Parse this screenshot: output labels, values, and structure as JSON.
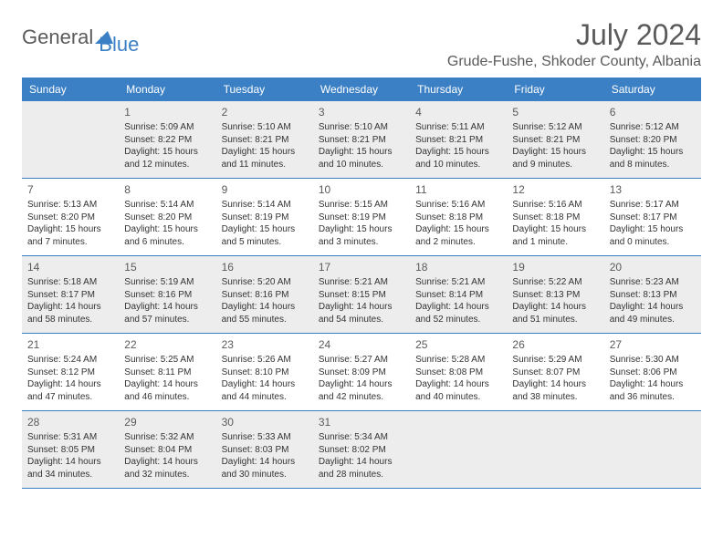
{
  "logo": {
    "text1": "General",
    "text2": "Blue"
  },
  "title": "July 2024",
  "location": "Grude-Fushe, Shkoder County, Albania",
  "colors": {
    "header_bg": "#3b7fc4",
    "header_text": "#ffffff",
    "alt_row_bg": "#ededed",
    "border": "#3b7fc4",
    "text_gray": "#5a5a5a",
    "text_dark": "#333333"
  },
  "dayNames": [
    "Sunday",
    "Monday",
    "Tuesday",
    "Wednesday",
    "Thursday",
    "Friday",
    "Saturday"
  ],
  "weeks": [
    [
      {
        "n": "",
        "sunrise": "",
        "sunset": "",
        "daylight": ""
      },
      {
        "n": "1",
        "sunrise": "Sunrise: 5:09 AM",
        "sunset": "Sunset: 8:22 PM",
        "daylight": "Daylight: 15 hours and 12 minutes."
      },
      {
        "n": "2",
        "sunrise": "Sunrise: 5:10 AM",
        "sunset": "Sunset: 8:21 PM",
        "daylight": "Daylight: 15 hours and 11 minutes."
      },
      {
        "n": "3",
        "sunrise": "Sunrise: 5:10 AM",
        "sunset": "Sunset: 8:21 PM",
        "daylight": "Daylight: 15 hours and 10 minutes."
      },
      {
        "n": "4",
        "sunrise": "Sunrise: 5:11 AM",
        "sunset": "Sunset: 8:21 PM",
        "daylight": "Daylight: 15 hours and 10 minutes."
      },
      {
        "n": "5",
        "sunrise": "Sunrise: 5:12 AM",
        "sunset": "Sunset: 8:21 PM",
        "daylight": "Daylight: 15 hours and 9 minutes."
      },
      {
        "n": "6",
        "sunrise": "Sunrise: 5:12 AM",
        "sunset": "Sunset: 8:20 PM",
        "daylight": "Daylight: 15 hours and 8 minutes."
      }
    ],
    [
      {
        "n": "7",
        "sunrise": "Sunrise: 5:13 AM",
        "sunset": "Sunset: 8:20 PM",
        "daylight": "Daylight: 15 hours and 7 minutes."
      },
      {
        "n": "8",
        "sunrise": "Sunrise: 5:14 AM",
        "sunset": "Sunset: 8:20 PM",
        "daylight": "Daylight: 15 hours and 6 minutes."
      },
      {
        "n": "9",
        "sunrise": "Sunrise: 5:14 AM",
        "sunset": "Sunset: 8:19 PM",
        "daylight": "Daylight: 15 hours and 5 minutes."
      },
      {
        "n": "10",
        "sunrise": "Sunrise: 5:15 AM",
        "sunset": "Sunset: 8:19 PM",
        "daylight": "Daylight: 15 hours and 3 minutes."
      },
      {
        "n": "11",
        "sunrise": "Sunrise: 5:16 AM",
        "sunset": "Sunset: 8:18 PM",
        "daylight": "Daylight: 15 hours and 2 minutes."
      },
      {
        "n": "12",
        "sunrise": "Sunrise: 5:16 AM",
        "sunset": "Sunset: 8:18 PM",
        "daylight": "Daylight: 15 hours and 1 minute."
      },
      {
        "n": "13",
        "sunrise": "Sunrise: 5:17 AM",
        "sunset": "Sunset: 8:17 PM",
        "daylight": "Daylight: 15 hours and 0 minutes."
      }
    ],
    [
      {
        "n": "14",
        "sunrise": "Sunrise: 5:18 AM",
        "sunset": "Sunset: 8:17 PM",
        "daylight": "Daylight: 14 hours and 58 minutes."
      },
      {
        "n": "15",
        "sunrise": "Sunrise: 5:19 AM",
        "sunset": "Sunset: 8:16 PM",
        "daylight": "Daylight: 14 hours and 57 minutes."
      },
      {
        "n": "16",
        "sunrise": "Sunrise: 5:20 AM",
        "sunset": "Sunset: 8:16 PM",
        "daylight": "Daylight: 14 hours and 55 minutes."
      },
      {
        "n": "17",
        "sunrise": "Sunrise: 5:21 AM",
        "sunset": "Sunset: 8:15 PM",
        "daylight": "Daylight: 14 hours and 54 minutes."
      },
      {
        "n": "18",
        "sunrise": "Sunrise: 5:21 AM",
        "sunset": "Sunset: 8:14 PM",
        "daylight": "Daylight: 14 hours and 52 minutes."
      },
      {
        "n": "19",
        "sunrise": "Sunrise: 5:22 AM",
        "sunset": "Sunset: 8:13 PM",
        "daylight": "Daylight: 14 hours and 51 minutes."
      },
      {
        "n": "20",
        "sunrise": "Sunrise: 5:23 AM",
        "sunset": "Sunset: 8:13 PM",
        "daylight": "Daylight: 14 hours and 49 minutes."
      }
    ],
    [
      {
        "n": "21",
        "sunrise": "Sunrise: 5:24 AM",
        "sunset": "Sunset: 8:12 PM",
        "daylight": "Daylight: 14 hours and 47 minutes."
      },
      {
        "n": "22",
        "sunrise": "Sunrise: 5:25 AM",
        "sunset": "Sunset: 8:11 PM",
        "daylight": "Daylight: 14 hours and 46 minutes."
      },
      {
        "n": "23",
        "sunrise": "Sunrise: 5:26 AM",
        "sunset": "Sunset: 8:10 PM",
        "daylight": "Daylight: 14 hours and 44 minutes."
      },
      {
        "n": "24",
        "sunrise": "Sunrise: 5:27 AM",
        "sunset": "Sunset: 8:09 PM",
        "daylight": "Daylight: 14 hours and 42 minutes."
      },
      {
        "n": "25",
        "sunrise": "Sunrise: 5:28 AM",
        "sunset": "Sunset: 8:08 PM",
        "daylight": "Daylight: 14 hours and 40 minutes."
      },
      {
        "n": "26",
        "sunrise": "Sunrise: 5:29 AM",
        "sunset": "Sunset: 8:07 PM",
        "daylight": "Daylight: 14 hours and 38 minutes."
      },
      {
        "n": "27",
        "sunrise": "Sunrise: 5:30 AM",
        "sunset": "Sunset: 8:06 PM",
        "daylight": "Daylight: 14 hours and 36 minutes."
      }
    ],
    [
      {
        "n": "28",
        "sunrise": "Sunrise: 5:31 AM",
        "sunset": "Sunset: 8:05 PM",
        "daylight": "Daylight: 14 hours and 34 minutes."
      },
      {
        "n": "29",
        "sunrise": "Sunrise: 5:32 AM",
        "sunset": "Sunset: 8:04 PM",
        "daylight": "Daylight: 14 hours and 32 minutes."
      },
      {
        "n": "30",
        "sunrise": "Sunrise: 5:33 AM",
        "sunset": "Sunset: 8:03 PM",
        "daylight": "Daylight: 14 hours and 30 minutes."
      },
      {
        "n": "31",
        "sunrise": "Sunrise: 5:34 AM",
        "sunset": "Sunset: 8:02 PM",
        "daylight": "Daylight: 14 hours and 28 minutes."
      },
      {
        "n": "",
        "sunrise": "",
        "sunset": "",
        "daylight": ""
      },
      {
        "n": "",
        "sunrise": "",
        "sunset": "",
        "daylight": ""
      },
      {
        "n": "",
        "sunrise": "",
        "sunset": "",
        "daylight": ""
      }
    ]
  ]
}
